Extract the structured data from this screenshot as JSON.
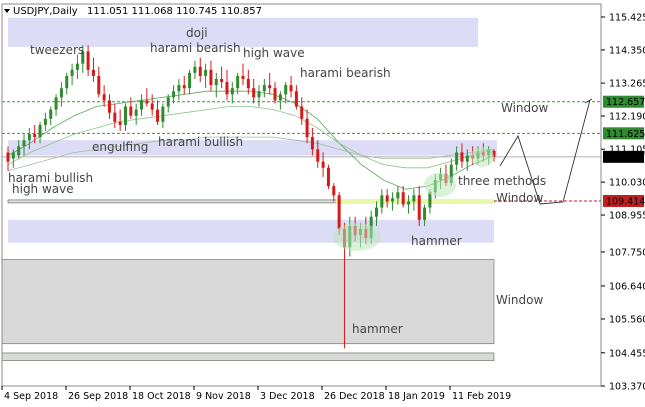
{
  "header": {
    "symbol": "USDJPY,Daily",
    "ohlc": "111.051 111.068 110.745 110.857"
  },
  "colors": {
    "bull": "#2e8b2e",
    "bear": "#d61a1a",
    "zone": "#dcdcf6",
    "grey_zone": "#d9d9d9",
    "yellow_zone": "#e8f7a8",
    "green_line": "#3a9a3a",
    "red_line": "#c02020"
  },
  "chart_data": {
    "type": "candlestick",
    "instrument": "USDJPY",
    "timeframe": "Daily",
    "ylim": [
      103.37,
      115.85
    ],
    "yticks": [
      115.425,
      114.35,
      113.265,
      112.19,
      111.105,
      110.03,
      108.955,
      107.75,
      106.64,
      105.56,
      104.455,
      103.37
    ],
    "ytick_labels": [
      "115.425",
      "114.350",
      "113.265",
      "112.190",
      "111.105",
      "110.030",
      "108.955",
      "107.750",
      "106.640",
      "105.560",
      "104.455",
      "103.370"
    ],
    "xtick_labels": [
      "4 Sep 2018",
      "26 Sep 2018",
      "18 Oct 2018",
      "9 Nov 2018",
      "3 Dec 2018",
      "26 Dec 2018",
      "18 Jan 2019",
      "11 Feb 2019"
    ],
    "level_labels": [
      {
        "value": 112.657,
        "text": "112.657",
        "color": "#2e8b2e"
      },
      {
        "value": 111.625,
        "text": "111.625",
        "color": "#2e8b2e"
      },
      {
        "value": 110.857,
        "text": "110.857",
        "color": "#000000"
      },
      {
        "value": 109.414,
        "text": "109.414",
        "color": "#c02020"
      }
    ],
    "zones": [
      {
        "color": "blue",
        "top": 115.4,
        "bottom": 114.45
      },
      {
        "color": "blue",
        "top": 111.4,
        "bottom": 110.9
      },
      {
        "color": "blue",
        "top": 108.8,
        "bottom": 108.05
      },
      {
        "color": "grey",
        "top": 109.45,
        "bottom": 109.35
      },
      {
        "color": "grey",
        "top": 107.5,
        "bottom": 104.75
      },
      {
        "color": "grey",
        "top": 104.45,
        "bottom": 104.2
      },
      {
        "color": "yellow",
        "top": 109.48,
        "bottom": 109.32
      }
    ],
    "candles": [
      [
        111.0,
        111.2,
        110.4,
        110.7
      ],
      [
        110.8,
        111.1,
        110.5,
        111.0
      ],
      [
        110.9,
        111.4,
        110.8,
        111.2
      ],
      [
        111.2,
        111.6,
        110.9,
        111.4
      ],
      [
        111.4,
        111.8,
        111.1,
        111.6
      ],
      [
        111.6,
        111.9,
        111.3,
        111.5
      ],
      [
        111.5,
        112.0,
        111.3,
        111.9
      ],
      [
        111.9,
        112.3,
        111.7,
        112.1
      ],
      [
        112.1,
        112.5,
        111.9,
        112.4
      ],
      [
        112.4,
        112.9,
        112.2,
        112.8
      ],
      [
        112.8,
        113.3,
        112.5,
        113.1
      ],
      [
        113.1,
        113.6,
        112.9,
        113.5
      ],
      [
        113.5,
        113.9,
        113.2,
        113.7
      ],
      [
        113.7,
        114.2,
        113.4,
        113.9
      ],
      [
        113.9,
        114.5,
        113.6,
        114.3
      ],
      [
        114.3,
        114.5,
        113.5,
        113.7
      ],
      [
        113.7,
        114.1,
        113.3,
        113.5
      ],
      [
        113.5,
        113.8,
        112.8,
        112.9
      ],
      [
        112.9,
        113.2,
        112.5,
        112.7
      ],
      [
        112.7,
        112.9,
        112.1,
        112.3
      ],
      [
        112.3,
        112.6,
        111.8,
        112.0
      ],
      [
        112.0,
        112.4,
        111.7,
        111.9
      ],
      [
        111.9,
        112.6,
        111.7,
        112.5
      ],
      [
        112.5,
        112.8,
        112.1,
        112.2
      ],
      [
        112.2,
        112.6,
        111.9,
        112.4
      ],
      [
        112.4,
        112.9,
        112.2,
        112.7
      ],
      [
        112.7,
        113.1,
        112.5,
        112.6
      ],
      [
        112.6,
        112.9,
        112.2,
        112.4
      ],
      [
        112.4,
        112.7,
        111.9,
        112.0
      ],
      [
        112.0,
        112.6,
        111.8,
        112.5
      ],
      [
        112.5,
        112.9,
        112.3,
        112.8
      ],
      [
        112.8,
        113.2,
        112.6,
        113.0
      ],
      [
        113.0,
        113.4,
        112.7,
        113.2
      ],
      [
        113.2,
        113.5,
        112.9,
        113.1
      ],
      [
        113.1,
        113.7,
        112.9,
        113.6
      ],
      [
        113.6,
        114.0,
        113.4,
        113.8
      ],
      [
        113.8,
        114.1,
        113.3,
        113.5
      ],
      [
        113.5,
        113.9,
        113.1,
        113.7
      ],
      [
        113.7,
        114.0,
        113.0,
        113.2
      ],
      [
        113.2,
        113.6,
        112.8,
        113.4
      ],
      [
        113.4,
        113.8,
        113.1,
        113.3
      ],
      [
        113.3,
        113.7,
        112.7,
        112.9
      ],
      [
        112.9,
        113.3,
        112.6,
        113.1
      ],
      [
        113.1,
        113.6,
        112.9,
        113.5
      ],
      [
        113.5,
        113.9,
        113.2,
        113.4
      ],
      [
        113.4,
        113.7,
        112.9,
        113.1
      ],
      [
        113.1,
        113.4,
        112.6,
        112.8
      ],
      [
        112.8,
        113.2,
        112.5,
        113.0
      ],
      [
        113.0,
        113.4,
        112.8,
        113.2
      ],
      [
        113.2,
        113.6,
        112.9,
        113.1
      ],
      [
        113.1,
        113.3,
        112.6,
        112.7
      ],
      [
        112.7,
        113.0,
        112.4,
        112.9
      ],
      [
        112.9,
        113.3,
        112.6,
        113.2
      ],
      [
        113.2,
        113.5,
        112.8,
        113.0
      ],
      [
        113.0,
        113.2,
        112.4,
        112.5
      ],
      [
        112.5,
        112.8,
        111.9,
        112.1
      ],
      [
        112.1,
        112.4,
        111.3,
        111.5
      ],
      [
        111.5,
        111.8,
        110.9,
        111.1
      ],
      [
        111.1,
        111.4,
        110.5,
        110.7
      ],
      [
        110.7,
        111.0,
        110.2,
        110.5
      ],
      [
        110.5,
        110.6,
        109.8,
        109.9
      ],
      [
        109.9,
        110.0,
        109.4,
        109.6
      ],
      [
        109.6,
        109.7,
        108.3,
        108.5
      ],
      [
        108.5,
        108.7,
        104.6,
        107.9
      ],
      [
        107.9,
        108.9,
        107.6,
        108.6
      ],
      [
        108.6,
        108.9,
        108.1,
        108.3
      ],
      [
        108.3,
        108.7,
        107.9,
        108.5
      ],
      [
        108.5,
        108.9,
        108.0,
        108.2
      ],
      [
        108.2,
        109.1,
        108.0,
        108.9
      ],
      [
        108.9,
        109.4,
        108.6,
        109.2
      ],
      [
        109.2,
        109.8,
        109.0,
        109.6
      ],
      [
        109.6,
        109.8,
        109.2,
        109.4
      ],
      [
        109.4,
        109.7,
        109.1,
        109.5
      ],
      [
        109.5,
        109.9,
        109.3,
        109.7
      ],
      [
        109.7,
        109.9,
        109.2,
        109.3
      ],
      [
        109.3,
        109.6,
        109.0,
        109.4
      ],
      [
        109.4,
        109.8,
        109.1,
        109.6
      ],
      [
        109.6,
        109.9,
        108.6,
        108.8
      ],
      [
        108.8,
        109.3,
        108.6,
        109.2
      ],
      [
        109.2,
        109.8,
        109.0,
        109.7
      ],
      [
        109.7,
        110.3,
        109.5,
        110.1
      ],
      [
        110.1,
        110.5,
        109.8,
        110.3
      ],
      [
        110.3,
        110.6,
        109.9,
        110.0
      ],
      [
        110.0,
        110.8,
        109.9,
        110.6
      ],
      [
        110.6,
        111.2,
        110.4,
        111.0
      ],
      [
        111.0,
        111.3,
        110.5,
        110.7
      ],
      [
        110.7,
        111.1,
        110.4,
        110.9
      ],
      [
        110.9,
        111.2,
        110.6,
        110.8
      ],
      [
        110.8,
        111.2,
        110.6,
        111.0
      ],
      [
        111.0,
        111.3,
        110.7,
        110.9
      ],
      [
        110.9,
        111.2,
        110.6,
        111.1
      ],
      [
        111.05,
        111.1,
        110.7,
        110.857
      ]
    ],
    "moving_averages": [
      {
        "name": "MA1",
        "values": [
          110.9,
          111.3,
          111.8,
          112.2,
          112.5,
          112.6,
          112.7,
          112.8,
          112.9,
          113.0,
          113.0,
          113.0,
          112.9,
          112.6,
          112.1,
          111.3,
          110.6,
          110.1,
          109.8,
          109.9,
          110.2,
          110.6,
          110.9
        ]
      },
      {
        "name": "MA2",
        "values": [
          110.6,
          111.0,
          111.3,
          111.6,
          111.8,
          112.0,
          112.1,
          112.2,
          112.3,
          112.4,
          112.5,
          112.5,
          112.4,
          112.2,
          111.8,
          111.3,
          110.9,
          110.6,
          110.5,
          110.5,
          110.7,
          110.9,
          111.1
        ]
      },
      {
        "name": "MA3",
        "values": [
          110.4,
          110.6,
          110.8,
          111.0,
          111.1,
          111.2,
          111.3,
          111.4,
          111.4,
          111.5,
          111.5,
          111.5,
          111.5,
          111.4,
          111.3,
          111.1,
          110.9,
          110.8,
          110.8,
          110.8,
          110.9,
          111.0,
          111.1
        ]
      }
    ],
    "annotations": [
      {
        "text": "tweezers"
      },
      {
        "text": "doji"
      },
      {
        "text": "harami bearish"
      },
      {
        "text": "high wave"
      },
      {
        "text": "harami bearish"
      },
      {
        "text": "engulfing"
      },
      {
        "text": "harami bullish"
      },
      {
        "text": "harami bullish"
      },
      {
        "text": "high wave"
      },
      {
        "text": "Window"
      },
      {
        "text": "three methods"
      },
      {
        "text": "Window"
      },
      {
        "text": "hammer"
      },
      {
        "text": "Window"
      },
      {
        "text": "hammer"
      }
    ]
  }
}
